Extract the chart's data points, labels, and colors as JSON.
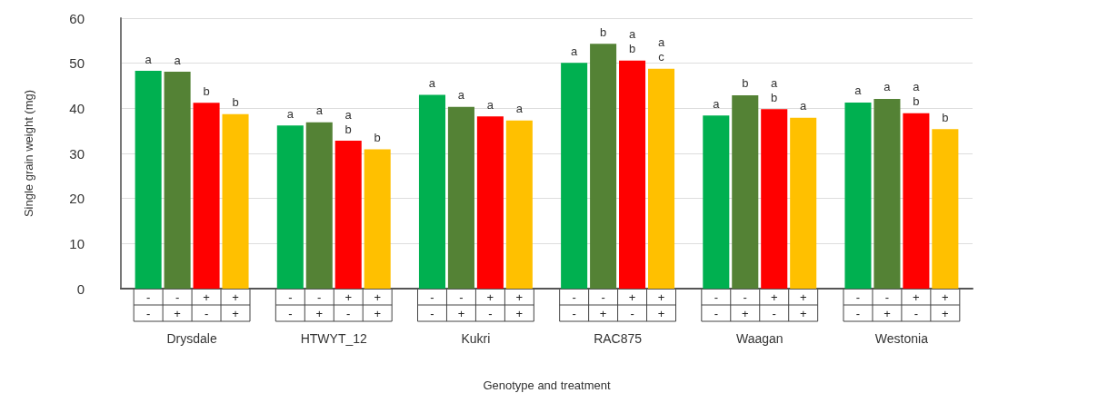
{
  "chart_data": {
    "type": "bar",
    "xlabel": "Genotype and treatment",
    "ylabel": "Single grain weight (mg)",
    "categories": [
      "Drysdale",
      "HTWYT_12",
      "Kukri",
      "RAC875",
      "Waagan",
      "Westonia"
    ],
    "series": [
      {
        "color": "#00b050",
        "values": [
          48.3,
          36.2,
          43.0,
          50.1,
          38.4,
          41.3
        ],
        "value_labels": [
          "a",
          "a",
          "a",
          "a",
          "a",
          "a"
        ]
      },
      {
        "color": "#548235",
        "values": [
          48.1,
          36.9,
          40.3,
          54.3,
          42.9,
          42.1
        ],
        "value_labels": [
          "a",
          "a",
          "a",
          "b",
          "b",
          "a"
        ]
      },
      {
        "color": "#ff0000",
        "values": [
          41.2,
          32.8,
          38.2,
          50.6,
          39.8,
          38.9
        ],
        "value_labels": [
          "b",
          "a\nb",
          "a",
          "a\nb",
          "a\nb",
          "a\nb"
        ]
      },
      {
        "color": "#ffc000",
        "values": [
          38.7,
          30.9,
          37.3,
          48.8,
          37.9,
          35.4
        ],
        "value_labels": [
          "b",
          "b",
          "a",
          "a\nc",
          "a",
          "b"
        ]
      }
    ],
    "annotations": [
      "-",
      "-",
      "+",
      "+",
      "-",
      "+",
      "-",
      "+"
    ],
    "ylim": [
      0,
      60
    ],
    "yticks": [
      0,
      10,
      20,
      30,
      40,
      50,
      60
    ],
    "grid": "y"
  }
}
